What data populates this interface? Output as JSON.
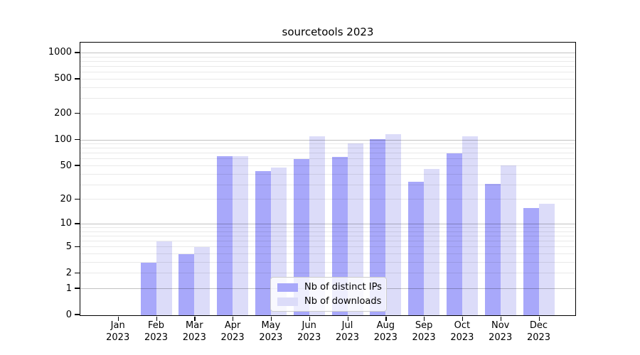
{
  "title": "sourcetools 2023",
  "chart_data": {
    "type": "bar",
    "title": "sourcetools 2023",
    "categories": [
      "Jan",
      "Feb",
      "Mar",
      "Apr",
      "May",
      "Jun",
      "Jul",
      "Aug",
      "Sep",
      "Oct",
      "Nov",
      "Dec"
    ],
    "x_year": "2023",
    "series": [
      {
        "name": "Nb of distinct IPs",
        "color": "#a8a8fa",
        "values": [
          0,
          3,
          4,
          65,
          44,
          61,
          64,
          103,
          33,
          70,
          31,
          16
        ]
      },
      {
        "name": "Nb of downloads",
        "color": "#dcdcf9",
        "values": [
          0,
          6,
          5,
          65,
          48,
          110,
          92,
          118,
          46,
          110,
          51,
          18
        ]
      }
    ],
    "yscale": "log1p",
    "yticks": [
      0,
      1,
      2,
      5,
      10,
      20,
      50,
      100,
      200,
      500,
      1000
    ],
    "ylim": [
      0,
      1300
    ],
    "grid": {
      "major_at": [
        1,
        10,
        100,
        1000
      ],
      "minor_multiples": [
        2,
        3,
        4,
        5,
        6,
        7,
        8,
        9
      ]
    },
    "legend_position": "lower center",
    "xlabel": "",
    "ylabel": ""
  },
  "colors": {
    "axis": "#000000",
    "background": "#ffffff"
  }
}
